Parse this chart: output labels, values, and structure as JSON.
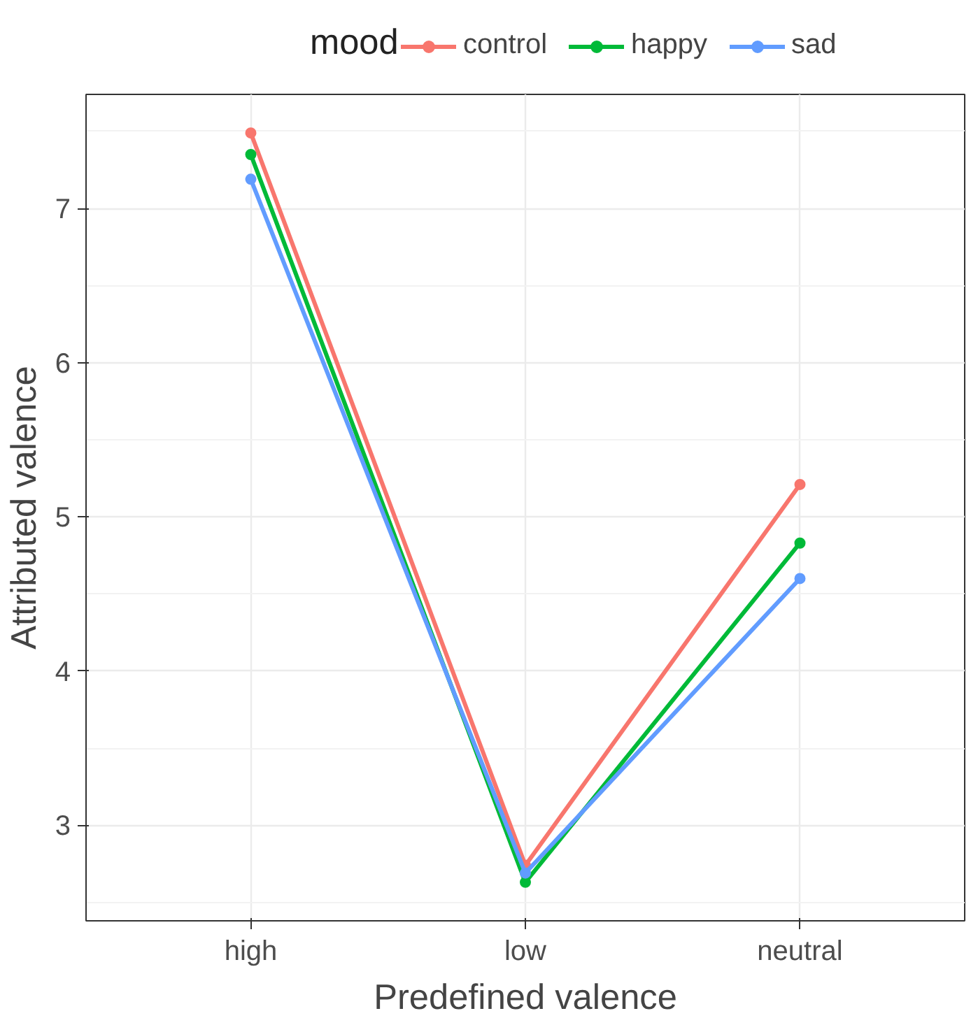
{
  "chart_data": {
    "type": "line",
    "xlabel": "Predefined valence",
    "ylabel": "Attributed valence",
    "legend_title": "mood",
    "legend": "top",
    "grid": true,
    "marker": "circle",
    "line_style": "solid",
    "categories": [
      "high",
      "low",
      "neutral"
    ],
    "ylim": [
      2.38,
      7.74
    ],
    "yticks": [
      3,
      4,
      5,
      6,
      7
    ],
    "series": [
      {
        "name": "control",
        "color": "#f8766d",
        "values": [
          7.49,
          2.74,
          5.21
        ]
      },
      {
        "name": "happy",
        "color": "#00ba38",
        "values": [
          7.35,
          2.63,
          4.83
        ]
      },
      {
        "name": "sad",
        "color": "#619cff",
        "values": [
          7.19,
          2.69,
          4.6
        ]
      }
    ]
  }
}
